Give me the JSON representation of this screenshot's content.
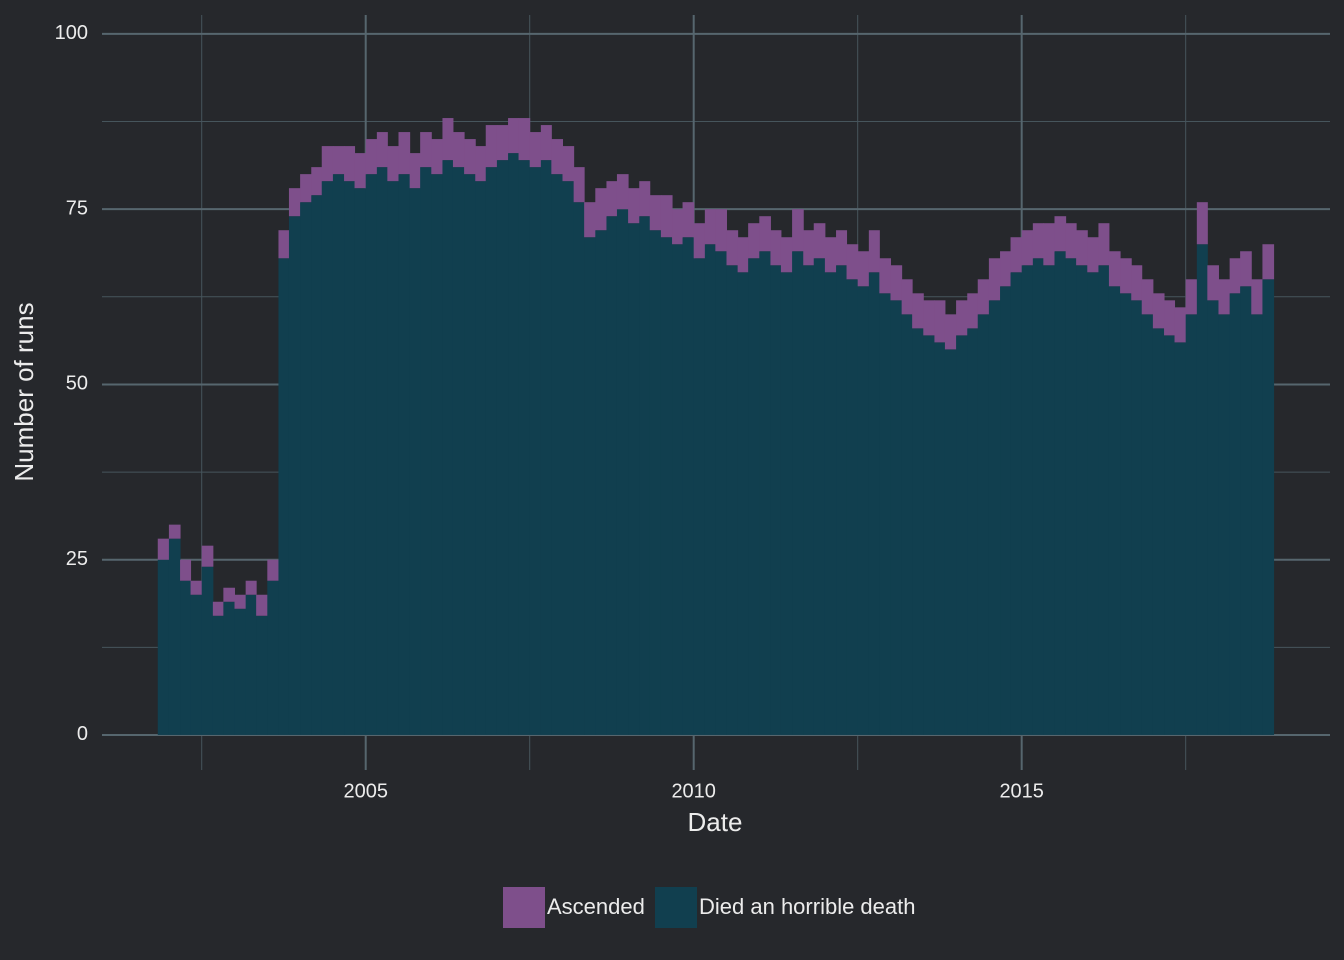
{
  "chart_data": {
    "type": "stacked_bar",
    "x_label": "Date",
    "y_label": "Number of runs",
    "x": [
      2001.83,
      2002,
      2002.17,
      2002.33,
      2002.5,
      2002.67,
      2002.83,
      2003,
      2003.17,
      2003.33,
      2003.5,
      2003.67,
      2003.83,
      2004,
      2004.17,
      2004.33,
      2004.5,
      2004.67,
      2004.83,
      2005,
      2005.17,
      2005.33,
      2005.5,
      2005.67,
      2005.83,
      2006,
      2006.17,
      2006.33,
      2006.5,
      2006.67,
      2006.83,
      2007,
      2007.17,
      2007.33,
      2007.5,
      2007.67,
      2007.83,
      2008,
      2008.17,
      2008.33,
      2008.5,
      2008.67,
      2008.83,
      2009,
      2009.17,
      2009.33,
      2009.5,
      2009.67,
      2009.83,
      2010,
      2010.17,
      2010.33,
      2010.5,
      2010.67,
      2010.83,
      2011,
      2011.17,
      2011.33,
      2011.5,
      2011.67,
      2011.83,
      2012,
      2012.17,
      2012.33,
      2012.5,
      2012.67,
      2012.83,
      2013,
      2013.17,
      2013.33,
      2013.5,
      2013.67,
      2013.83,
      2014,
      2014.17,
      2014.33,
      2014.5,
      2014.67,
      2014.83,
      2015,
      2015.17,
      2015.33,
      2015.5,
      2015.67,
      2015.83,
      2016,
      2016.17,
      2016.33,
      2016.5,
      2016.67,
      2016.83,
      2017,
      2017.17,
      2017.33,
      2017.5,
      2017.67,
      2017.83,
      2018,
      2018.17,
      2018.33,
      2018.5,
      2018.67
    ],
    "series": [
      {
        "name": "Ascended",
        "color": "#7e4f8b",
        "values": [
          3,
          2,
          3,
          2,
          3,
          2,
          2,
          2,
          2,
          3,
          3,
          4,
          4,
          4,
          4,
          5,
          4,
          5,
          5,
          5,
          5,
          5,
          6,
          5,
          5,
          5,
          6,
          5,
          5,
          5,
          6,
          5,
          5,
          6,
          5,
          5,
          5,
          5,
          5,
          5,
          6,
          5,
          5,
          5,
          5,
          5,
          6,
          5,
          5,
          5,
          5,
          6,
          5,
          5,
          5,
          5,
          5,
          5,
          6,
          5,
          5,
          5,
          5,
          5,
          5,
          6,
          5,
          5,
          5,
          5,
          5,
          6,
          5,
          5,
          5,
          5,
          6,
          5,
          5,
          5,
          5,
          6,
          5,
          5,
          5,
          5,
          6,
          5,
          5,
          5,
          5,
          5,
          5,
          5,
          5,
          6,
          5,
          5,
          5,
          5,
          5,
          5
        ]
      },
      {
        "name": "Died an horrible death",
        "color": "#113f4f",
        "values": [
          25,
          28,
          22,
          20,
          24,
          17,
          19,
          18,
          20,
          17,
          22,
          68,
          74,
          76,
          77,
          79,
          80,
          79,
          78,
          80,
          81,
          79,
          80,
          78,
          81,
          80,
          82,
          81,
          80,
          79,
          81,
          82,
          83,
          82,
          81,
          82,
          80,
          79,
          76,
          71,
          72,
          74,
          75,
          73,
          74,
          72,
          71,
          70,
          71,
          68,
          70,
          69,
          67,
          66,
          68,
          69,
          67,
          66,
          69,
          67,
          68,
          66,
          67,
          65,
          64,
          66,
          63,
          62,
          60,
          58,
          57,
          56,
          55,
          57,
          58,
          60,
          62,
          64,
          66,
          67,
          68,
          67,
          69,
          68,
          67,
          66,
          67,
          64,
          63,
          62,
          60,
          58,
          57,
          56,
          60,
          70,
          62,
          60,
          63,
          64,
          60,
          65
        ]
      }
    ],
    "xlim": [
      2000.98,
      2019.7
    ],
    "xticks": [
      2005,
      2010,
      2015
    ],
    "x_minor_ticks": [
      2002.5,
      2007.5,
      2012.5,
      2017.5
    ],
    "ylim": [
      -5,
      102.7
    ],
    "yticks": [
      0,
      25,
      50,
      75,
      100
    ],
    "y_minor_ticks": [
      12.5,
      37.5,
      62.5,
      87.5
    ],
    "grid": true,
    "legend": "bottom"
  }
}
